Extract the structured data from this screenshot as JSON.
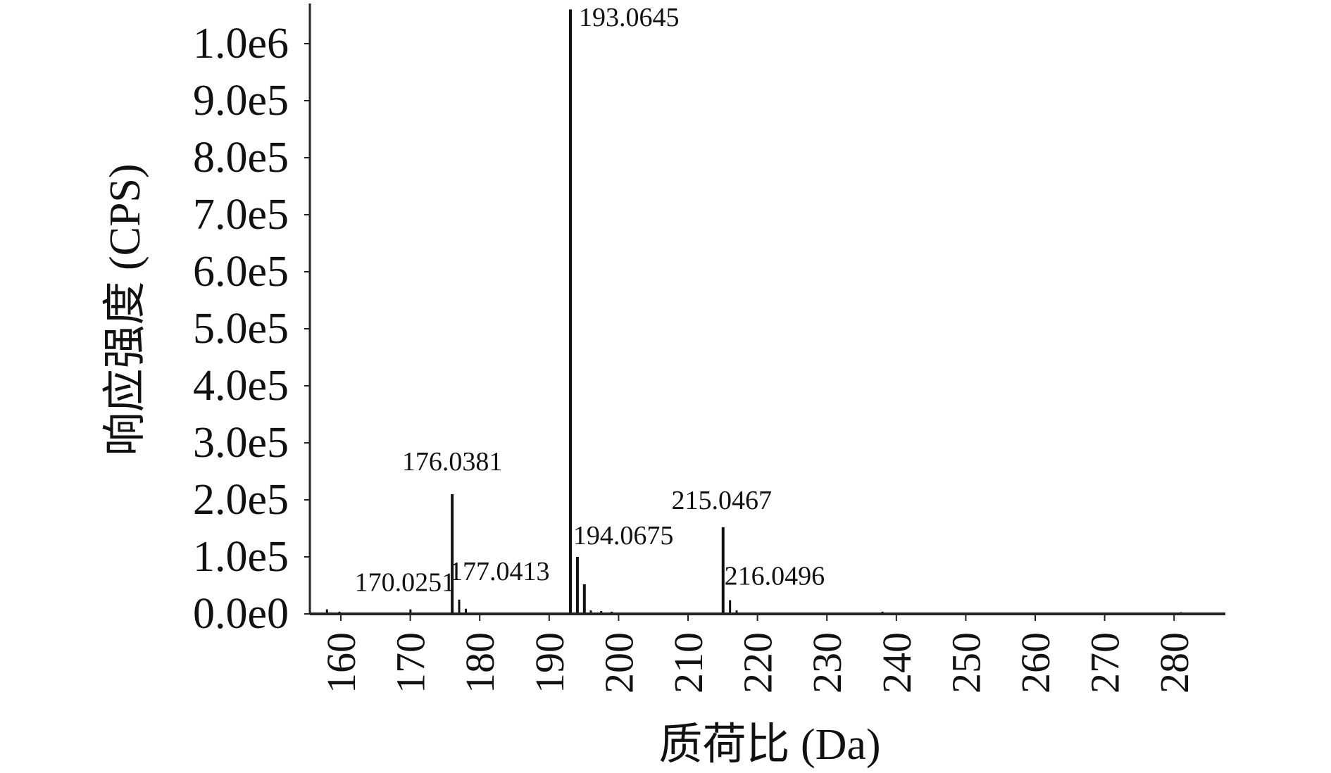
{
  "chart_data": {
    "type": "bar",
    "xlabel": "质荷比 (Da)",
    "ylabel": "响应强度 (CPS)",
    "xlim": [
      157.5,
      288
    ],
    "ylim": [
      0,
      1060000
    ],
    "x_ticks": [
      160,
      170,
      180,
      190,
      200,
      210,
      220,
      230,
      240,
      250,
      260,
      270,
      280
    ],
    "y_ticks": [
      {
        "value": 0,
        "label": "0.0e0"
      },
      {
        "value": 100000,
        "label": "1.0e5"
      },
      {
        "value": 200000,
        "label": "2.0e5"
      },
      {
        "value": 300000,
        "label": "3.0e5"
      },
      {
        "value": 400000,
        "label": "4.0e5"
      },
      {
        "value": 500000,
        "label": "5.0e5"
      },
      {
        "value": 600000,
        "label": "6.0e5"
      },
      {
        "value": 700000,
        "label": "7.0e5"
      },
      {
        "value": 800000,
        "label": "8.0e5"
      },
      {
        "value": 900000,
        "label": "9.0e5"
      },
      {
        "value": 1000000,
        "label": "1.0e6"
      }
    ],
    "series": [
      {
        "peaks": [
          {
            "mz": 158.0,
            "intensity": 8000
          },
          {
            "mz": 159.8,
            "intensity": 4000
          },
          {
            "mz": 170.0251,
            "intensity": 8000,
            "label": "170.0251"
          },
          {
            "mz": 176.0381,
            "intensity": 210000,
            "label": "176.0381"
          },
          {
            "mz": 177.0413,
            "intensity": 25000,
            "label": "177.0413"
          },
          {
            "mz": 178.0,
            "intensity": 9000
          },
          {
            "mz": 193.0645,
            "intensity": 1060000,
            "label": "193.0645"
          },
          {
            "mz": 194.0675,
            "intensity": 100000,
            "label": "194.0675"
          },
          {
            "mz": 195.07,
            "intensity": 52000
          },
          {
            "mz": 196.0,
            "intensity": 6000
          },
          {
            "mz": 197.5,
            "intensity": 5000
          },
          {
            "mz": 199.0,
            "intensity": 4000
          },
          {
            "mz": 215.0467,
            "intensity": 152000,
            "label": "215.0467"
          },
          {
            "mz": 216.0496,
            "intensity": 24000,
            "label": "216.0496"
          },
          {
            "mz": 217.0,
            "intensity": 6000
          },
          {
            "mz": 238.0,
            "intensity": 4000
          },
          {
            "mz": 281.0,
            "intensity": 3000
          }
        ]
      }
    ]
  }
}
